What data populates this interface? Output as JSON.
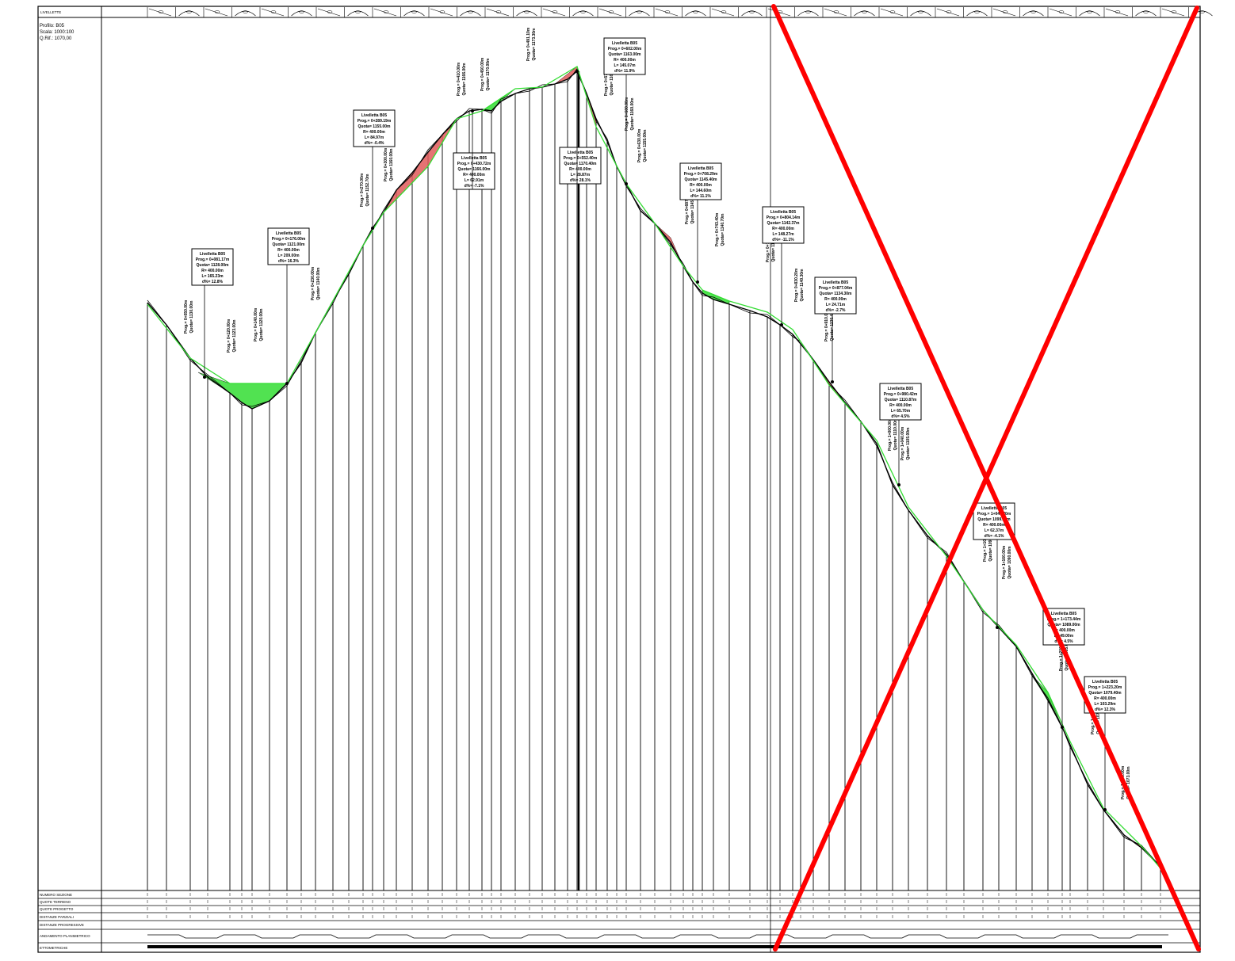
{
  "header": {
    "title": "LIVELLETTE"
  },
  "profile_info": [
    "Profilo: B05",
    "Scala: 1000:100",
    "Q.Rif.: 1070,00"
  ],
  "table_rows": [
    "NUMERO SEZIONE",
    "QUOTE TERRENO",
    "QUOTE PROGETTO",
    "DISTANZE PARZIALI",
    "DISTANZE PROGRESSIVE",
    "ANDAMENTO PLANIMETRICO",
    "ETTOMETRICHE"
  ],
  "livellette": [
    {
      "lines": [
        "Livelletta B05",
        "Prog.= 0+081.17m",
        "Quota= 1128.00m",
        "R= 400.00m",
        "L= 165.23m",
        "d%= 12.8%"
      ]
    },
    {
      "lines": [
        "Livelletta B05",
        "Prog.= 0+176.00m",
        "Quota= 1121.00m",
        "R= 400.00m",
        "L= 209.00m",
        "d%= 16.3%"
      ]
    },
    {
      "lines": [
        "Livelletta B05",
        "Prog.= 0+289.19m",
        "Quota= 1155.00m",
        "R= 400.00m",
        "L= 84.97m",
        "d%= -0.4%"
      ]
    },
    {
      "lines": [
        "Livelletta B05",
        "Prog.= 0+430.72m",
        "Quota= 1166.00m",
        "R= 400.00m",
        "L= 62.91m",
        "d%= -7.1%"
      ]
    },
    {
      "lines": [
        "Livelletta B05",
        "Prog.= 0+552.40m",
        "Quota= 1170.40m",
        "R= 400.00m",
        "L= 28.87m",
        "d%= 28.1%"
      ]
    },
    {
      "lines": [
        "Livelletta B05",
        "Prog.= 0+602.00m",
        "Quota= 1163.00m",
        "R= 400.00m",
        "L= 145.07m",
        "d%= 11.9%"
      ]
    },
    {
      "lines": [
        "Livelletta B05",
        "Prog.= 0+708.29m",
        "Quota= 1145.40m",
        "R= 400.00m",
        "L= 144.60m",
        "d%= 11.1%"
      ]
    },
    {
      "lines": [
        "Livelletta B05",
        "Prog.= 0+804.14m",
        "Quota= 1142.37m",
        "R= 400.00m",
        "L= 148.27m",
        "d%= -11.1%"
      ]
    },
    {
      "lines": [
        "Livelletta B05",
        "Prog.= 0+877.04m",
        "Quota= 1134.30m",
        "R= 400.00m",
        "L= 24.71m",
        "d%= -2.7%"
      ]
    },
    {
      "lines": [
        "Livelletta B05",
        "Prog.= 0+980.42m",
        "Quota= 1110.87m",
        "R= 400.00m",
        "L= 65.70m",
        "d%= 4.5%"
      ]
    },
    {
      "lines": [
        "Livelletta B05",
        "Prog.= 1+043.70m",
        "Quota= 1099.00m",
        "R= 400.00m",
        "L= 62.37m",
        "d%= -4.1%"
      ]
    },
    {
      "lines": [
        "Livelletta B05",
        "Prog.= 1+173.44m",
        "Quota= 1089.00m",
        "R= 400.00m",
        "L= 49.00m",
        "d%= 4.5%"
      ]
    },
    {
      "lines": [
        "Livelletta B05",
        "Prog.= 1+223.20m",
        "Quota= 1079.40m",
        "R= 400.00m",
        "L= 103.29m",
        "d%= 12.3%"
      ]
    }
  ],
  "vertical_labels": [
    {
      "lines": [
        "Prog.= 0+050.00m",
        "Quota= 1130.00m"
      ]
    },
    {
      "lines": [
        "Prog.= 0+120.00m",
        "Quota= 1123.00m"
      ]
    },
    {
      "lines": [
        "Prog.= 0+140.00m",
        "Quota= 1120.00m"
      ]
    },
    {
      "lines": [
        "Prog.= 0+230.00m",
        "Quota= 1140.00m"
      ]
    },
    {
      "lines": [
        "Prog.= 0+270.00m",
        "Quota= 1152.70m"
      ]
    },
    {
      "lines": [
        "Prog.= 0+300.00m",
        "Quota= 1160.00m"
      ]
    },
    {
      "lines": [
        "Prog.= 0+410.00m",
        "Quota= 1166.00m"
      ]
    },
    {
      "lines": [
        "Prog.= 0+450.00m",
        "Quota= 1170.00m"
      ]
    },
    {
      "lines": [
        "Prog.= 0+491.10m",
        "Quota= 1173.30m"
      ]
    },
    {
      "lines": [
        "Prog.= 0+570.00m",
        "Quota= 1166.00m"
      ]
    },
    {
      "lines": [
        "Prog.= 0+600.00m",
        "Quota= 1160.00m"
      ]
    },
    {
      "lines": [
        "Prog.= 0+630.00m",
        "Quota= 1155.00m"
      ]
    },
    {
      "lines": [
        "Prog.= 0+687.00m",
        "Quota= 1145.00m"
      ]
    },
    {
      "lines": [
        "Prog.= 0+743.40m",
        "Quota= 1140.70m"
      ]
    },
    {
      "lines": [
        "Prog.= 0+790.70m",
        "Quota= 1144.00m"
      ]
    },
    {
      "lines": [
        "Prog.= 0+830.20m",
        "Quota= 1140.30m"
      ]
    },
    {
      "lines": [
        "Prog.= 0+910.00m",
        "Quota= 1130.40m"
      ]
    },
    {
      "lines": [
        "Prog.= 1+000.00m",
        "Quota= 1110.00m"
      ]
    },
    {
      "lines": [
        "Prog.= 1+040.00m",
        "Quota= 1105.00m"
      ]
    },
    {
      "lines": [
        "Prog.= 1+100.00m",
        "Quota= 1096.00m"
      ]
    },
    {
      "lines": [
        "Prog.= 1+160.00m",
        "Quota= 1090.00m"
      ]
    },
    {
      "lines": [
        "Prog.= 1+200.00m",
        "Quota= 1085.00m"
      ]
    },
    {
      "lines": [
        "Prog.= 1+250.00m",
        "Quota= 1078.00m"
      ]
    },
    {
      "lines": [
        "Prog.= 1+300.00m",
        "Quota= 1073.00m"
      ]
    }
  ],
  "colors": {
    "fill_cut": "#e05a5a",
    "fill_embankment": "#33dd33",
    "project_line": "#33dd33",
    "cross_mark": "#ff0000"
  }
}
